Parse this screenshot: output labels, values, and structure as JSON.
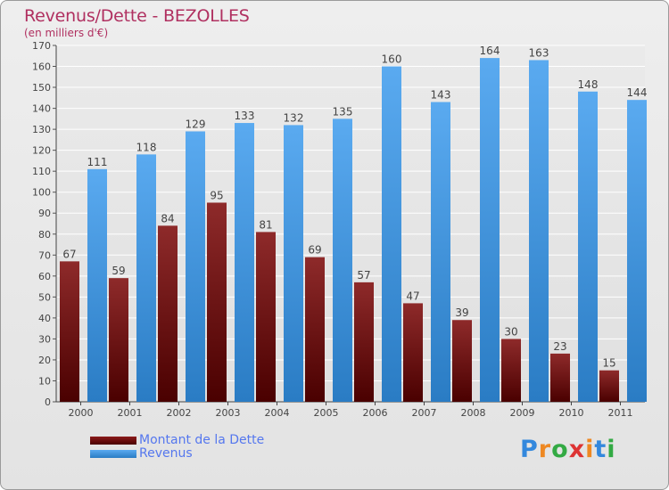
{
  "chart_data": {
    "type": "bar",
    "title": "Revenus/Dette - BEZOLLES",
    "subtitle": "(en milliers d'€)",
    "categories": [
      "2000",
      "2001",
      "2002",
      "2003",
      "2004",
      "2005",
      "2006",
      "2007",
      "2008",
      "2009",
      "2010",
      "2011"
    ],
    "series": [
      {
        "name": "Montant de la Dette",
        "color": "#8b1a1a",
        "values": [
          67,
          59,
          84,
          95,
          81,
          69,
          57,
          47,
          39,
          30,
          23,
          15
        ]
      },
      {
        "name": "Revenus",
        "color": "#4499dd",
        "values": [
          111,
          118,
          129,
          133,
          132,
          135,
          160,
          143,
          164,
          163,
          148,
          144
        ]
      }
    ],
    "ylim": [
      0,
      170
    ],
    "yticks": [
      0,
      10,
      20,
      30,
      40,
      50,
      60,
      70,
      80,
      90,
      100,
      110,
      120,
      130,
      140,
      150,
      160,
      170
    ],
    "grid": true,
    "legend": "bottom-left"
  },
  "logo": {
    "text": "Proxiti",
    "letters": [
      "P",
      "r",
      "o",
      "x",
      "i",
      "t",
      "i"
    ],
    "colors": [
      "#3388dd",
      "#ee8822",
      "#33aa44",
      "#dd3333",
      "#ee8822",
      "#3388dd",
      "#33aa44"
    ]
  }
}
